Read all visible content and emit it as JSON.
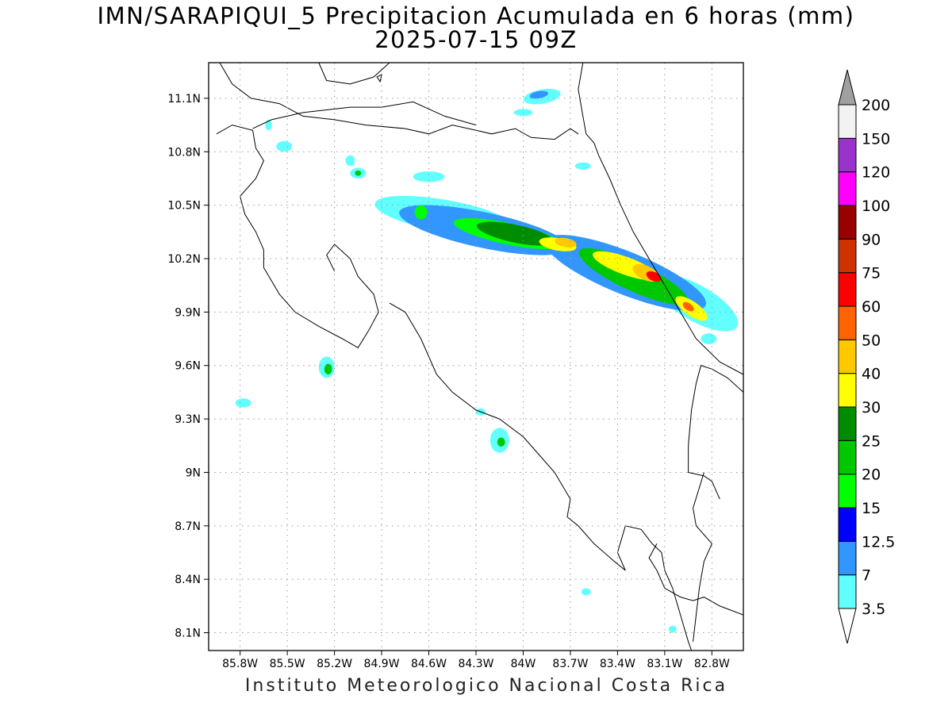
{
  "title": {
    "line1": "IMN/SARAPIQUI_5 Precipitacion Acumulada en 6 horas (mm)",
    "line2": "2025-07-15 09Z"
  },
  "footer": "Instituto Meteorologico Nacional Costa Rica",
  "map": {
    "lon_range": [
      -86.0,
      -82.6
    ],
    "lat_range": [
      8.0,
      11.3
    ],
    "lon_ticks": [
      {
        "value": -85.8,
        "label": "85.8W"
      },
      {
        "value": -85.5,
        "label": "85.5W"
      },
      {
        "value": -85.2,
        "label": "85.2W"
      },
      {
        "value": -84.9,
        "label": "84.9W"
      },
      {
        "value": -84.6,
        "label": "84.6W"
      },
      {
        "value": -84.3,
        "label": "84.3W"
      },
      {
        "value": -84.0,
        "label": "84W"
      },
      {
        "value": -83.7,
        "label": "83.7W"
      },
      {
        "value": -83.4,
        "label": "83.4W"
      },
      {
        "value": -83.1,
        "label": "83.1W"
      },
      {
        "value": -82.8,
        "label": "82.8W"
      }
    ],
    "lat_ticks": [
      {
        "value": 11.1,
        "label": "11.1N"
      },
      {
        "value": 10.8,
        "label": "10.8N"
      },
      {
        "value": 10.5,
        "label": "10.5N"
      },
      {
        "value": 10.2,
        "label": "10.2N"
      },
      {
        "value": 9.9,
        "label": "9.9N"
      },
      {
        "value": 9.6,
        "label": "9.6N"
      },
      {
        "value": 9.3,
        "label": "9.3N"
      },
      {
        "value": 9.0,
        "label": "9N"
      },
      {
        "value": 8.7,
        "label": "8.7N"
      },
      {
        "value": 8.4,
        "label": "8.4N"
      },
      {
        "value": 8.1,
        "label": "8.1N"
      }
    ],
    "grid": "dotted"
  },
  "legend": {
    "orientation": "vertical",
    "placement": "right",
    "arrow_top_color": "#a0a0a0",
    "arrow_bottom_color": "#ffffff",
    "bins": [
      {
        "label": "3.5",
        "color": "#62ffff"
      },
      {
        "label": "7",
        "color": "#3296ff"
      },
      {
        "label": "12.5",
        "color": "#0000ff"
      },
      {
        "label": "15",
        "color": "#00ff00"
      },
      {
        "label": "20",
        "color": "#00c800"
      },
      {
        "label": "25",
        "color": "#008c00"
      },
      {
        "label": "30",
        "color": "#ffff00"
      },
      {
        "label": "40",
        "color": "#ffc800"
      },
      {
        "label": "50",
        "color": "#ff6400"
      },
      {
        "label": "60",
        "color": "#ff0000"
      },
      {
        "label": "75",
        "color": "#cc3300"
      },
      {
        "label": "90",
        "color": "#990000"
      },
      {
        "label": "100",
        "color": "#ff00ff"
      },
      {
        "label": "120",
        "color": "#9933cc"
      },
      {
        "label": "150",
        "color": "#f2f2f2"
      },
      {
        "label": "200",
        "color": "#f2f2f2"
      }
    ]
  },
  "precip_features": [
    {
      "level": 7,
      "lon": -84.25,
      "lat": 10.36,
      "rx": 0.55,
      "ry": 0.1,
      "rot": 12
    },
    {
      "level": 7,
      "lon": -83.35,
      "lat": 10.12,
      "rx": 0.55,
      "ry": 0.12,
      "rot": 22
    },
    {
      "level": 3.5,
      "lon": -84.5,
      "lat": 10.44,
      "rx": 0.45,
      "ry": 0.09,
      "rot": 10
    },
    {
      "level": 3.5,
      "lon": -82.9,
      "lat": 9.95,
      "rx": 0.3,
      "ry": 0.1,
      "rot": 30
    },
    {
      "level": 15,
      "lon": -84.1,
      "lat": 10.34,
      "rx": 0.35,
      "ry": 0.06,
      "rot": 12
    },
    {
      "level": 20,
      "lon": -83.3,
      "lat": 10.1,
      "rx": 0.38,
      "ry": 0.08,
      "rot": 25
    },
    {
      "level": 25,
      "lon": -84.05,
      "lat": 10.34,
      "rx": 0.25,
      "ry": 0.05,
      "rot": 12
    },
    {
      "level": 30,
      "lon": -83.78,
      "lat": 10.28,
      "rx": 0.12,
      "ry": 0.035,
      "rot": 10
    },
    {
      "level": 40,
      "lon": -83.73,
      "lat": 10.29,
      "rx": 0.07,
      "ry": 0.025,
      "rot": 10
    },
    {
      "level": 30,
      "lon": -83.35,
      "lat": 10.16,
      "rx": 0.22,
      "ry": 0.05,
      "rot": 20
    },
    {
      "level": 40,
      "lon": -83.22,
      "lat": 10.12,
      "rx": 0.09,
      "ry": 0.04,
      "rot": 25
    },
    {
      "level": 60,
      "lon": -83.17,
      "lat": 10.1,
      "rx": 0.05,
      "ry": 0.025,
      "rot": 25
    },
    {
      "level": 30,
      "lon": -82.93,
      "lat": 9.92,
      "rx": 0.12,
      "ry": 0.04,
      "rot": 35
    },
    {
      "level": 50,
      "lon": -82.95,
      "lat": 9.93,
      "rx": 0.04,
      "ry": 0.02,
      "rot": 35
    },
    {
      "level": 15,
      "lon": -84.65,
      "lat": 10.46,
      "rx": 0.04,
      "ry": 0.04,
      "rot": 0
    },
    {
      "level": 3.5,
      "lon": -83.88,
      "lat": 11.11,
      "rx": 0.12,
      "ry": 0.04,
      "rot": -10
    },
    {
      "level": 7,
      "lon": -83.9,
      "lat": 11.12,
      "rx": 0.06,
      "ry": 0.02,
      "rot": -10
    },
    {
      "level": 3.5,
      "lon": -84.6,
      "lat": 10.66,
      "rx": 0.1,
      "ry": 0.03,
      "rot": 0
    },
    {
      "level": 3.5,
      "lon": -85.05,
      "lat": 10.68,
      "rx": 0.05,
      "ry": 0.03,
      "rot": 0
    },
    {
      "level": 20,
      "lon": -85.05,
      "lat": 10.68,
      "rx": 0.02,
      "ry": 0.015,
      "rot": 0
    },
    {
      "level": 3.5,
      "lon": -85.1,
      "lat": 10.75,
      "rx": 0.03,
      "ry": 0.03,
      "rot": 0
    },
    {
      "level": 3.5,
      "lon": -85.52,
      "lat": 10.83,
      "rx": 0.05,
      "ry": 0.03,
      "rot": 0
    },
    {
      "level": 3.5,
      "lon": -85.62,
      "lat": 10.95,
      "rx": 0.02,
      "ry": 0.03,
      "rot": 0
    },
    {
      "level": 3.5,
      "lon": -85.25,
      "lat": 9.59,
      "rx": 0.05,
      "ry": 0.06,
      "rot": 0
    },
    {
      "level": 20,
      "lon": -85.24,
      "lat": 9.58,
      "rx": 0.025,
      "ry": 0.03,
      "rot": 0
    },
    {
      "level": 3.5,
      "lon": -85.78,
      "lat": 9.39,
      "rx": 0.05,
      "ry": 0.025,
      "rot": 0
    },
    {
      "level": 3.5,
      "lon": -84.15,
      "lat": 9.18,
      "rx": 0.06,
      "ry": 0.07,
      "rot": 0
    },
    {
      "level": 20,
      "lon": -84.14,
      "lat": 9.17,
      "rx": 0.025,
      "ry": 0.025,
      "rot": 0
    },
    {
      "level": 3.5,
      "lon": -84.27,
      "lat": 9.34,
      "rx": 0.03,
      "ry": 0.02,
      "rot": 0
    },
    {
      "level": 3.5,
      "lon": -83.6,
      "lat": 8.33,
      "rx": 0.03,
      "ry": 0.02,
      "rot": 0
    },
    {
      "level": 3.5,
      "lon": -83.05,
      "lat": 8.12,
      "rx": 0.025,
      "ry": 0.02,
      "rot": 0
    },
    {
      "level": 3.5,
      "lon": -82.82,
      "lat": 9.75,
      "rx": 0.05,
      "ry": 0.03,
      "rot": 0
    },
    {
      "level": 3.5,
      "lon": -84.0,
      "lat": 11.02,
      "rx": 0.06,
      "ry": 0.02,
      "rot": 0
    },
    {
      "level": 3.5,
      "lon": -83.62,
      "lat": 10.72,
      "rx": 0.05,
      "ry": 0.02,
      "rot": 0
    }
  ]
}
